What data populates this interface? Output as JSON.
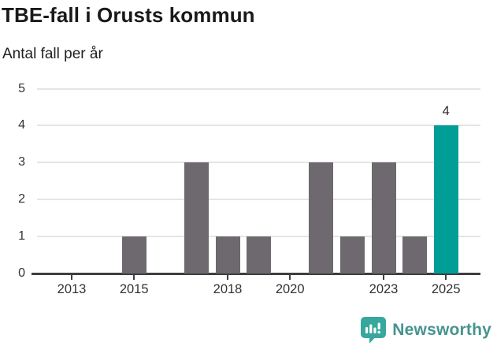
{
  "header": {
    "title": "TBE-fall i Orusts kommun",
    "subtitle": "Antal fall per år"
  },
  "chart_data": {
    "type": "bar",
    "title": "TBE-fall i Orusts kommun",
    "subtitle": "Antal fall per år",
    "xlabel": "",
    "ylabel": "Antal fall per år",
    "categories": [
      2013,
      2014,
      2015,
      2016,
      2017,
      2018,
      2019,
      2020,
      2021,
      2022,
      2023,
      2024,
      2025
    ],
    "values": [
      0,
      0,
      1,
      0,
      3,
      1,
      1,
      0,
      3,
      1,
      3,
      1,
      4
    ],
    "ylim": [
      0,
      5
    ],
    "y_ticks": [
      0,
      1,
      2,
      3,
      4,
      5
    ],
    "x_tick_labels": [
      2013,
      2015,
      2018,
      2020,
      2023,
      2025
    ],
    "grid": "horizontal",
    "legend": "none",
    "bar_color": "#6d696e",
    "highlight_color": "#009e96",
    "highlight_category": 2025,
    "data_labels": [
      {
        "category": 2025,
        "text": "4"
      }
    ]
  },
  "footer": {
    "brand": "Newsworthy",
    "brand_text_color": "#46948e",
    "logo_bubble_color": "#38a79d",
    "logo_glyph_color": "#ffffff"
  }
}
